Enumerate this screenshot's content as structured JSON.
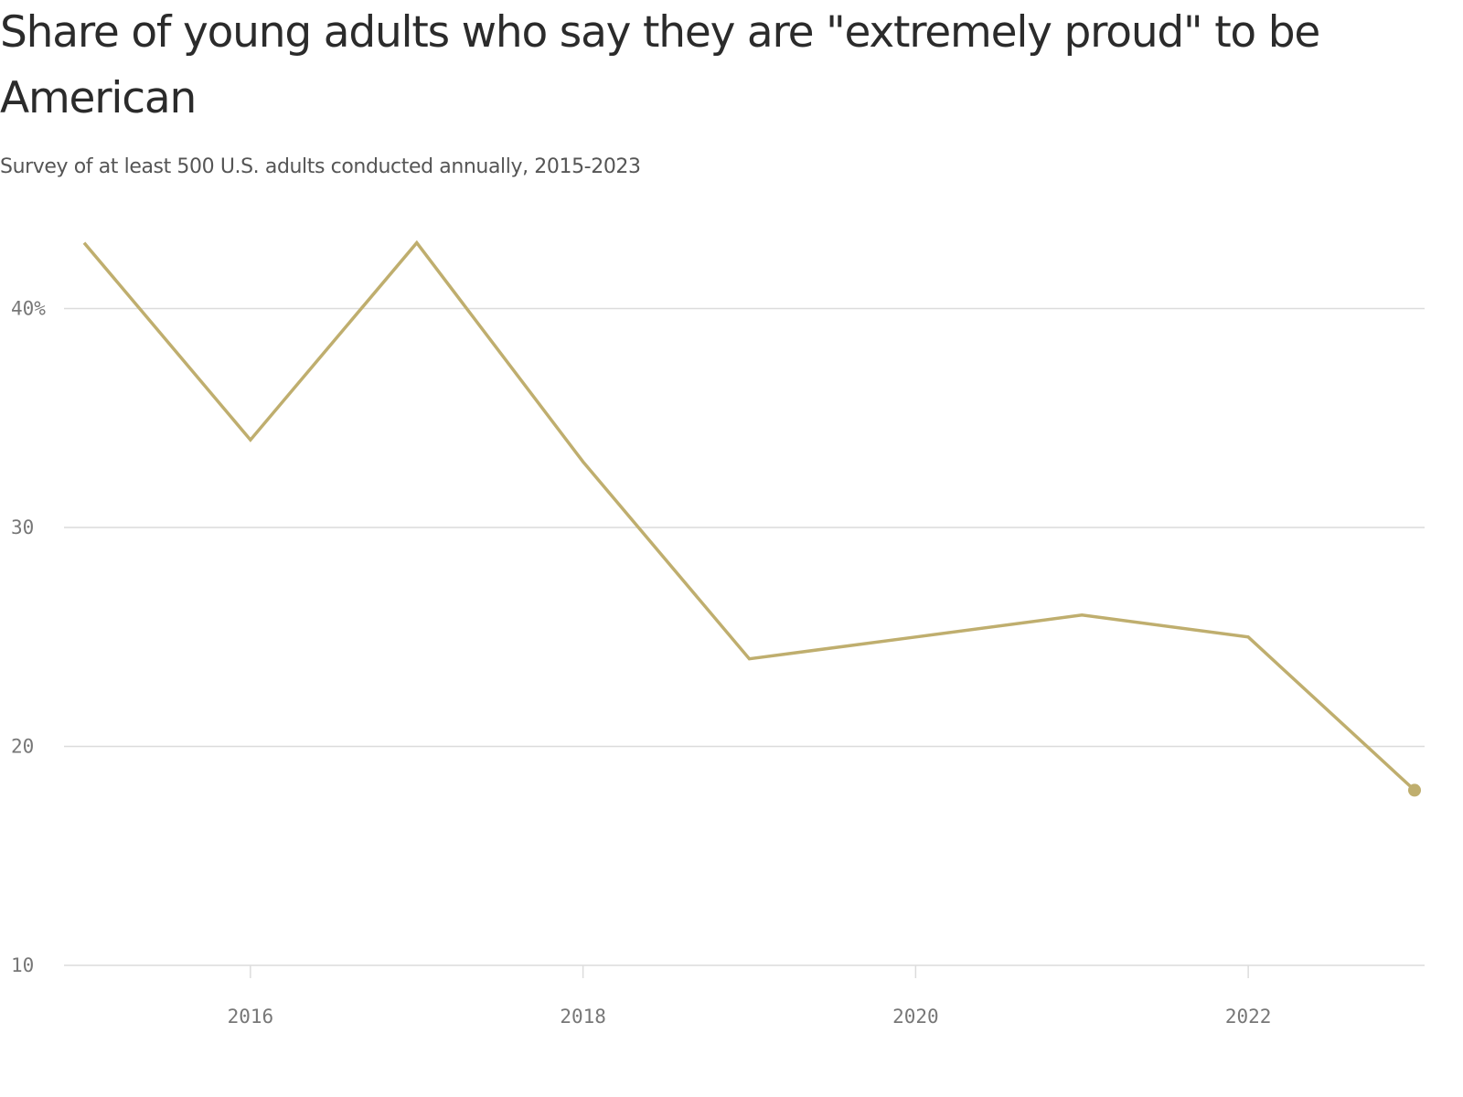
{
  "title": "Share of young adults who say they are \"extremely proud\" to be American",
  "subtitle": "Survey of at least 500 U.S. adults conducted annually, 2015-2023",
  "colors": {
    "line": "#bfae6e",
    "grid": "#dcdcdc",
    "title": "#2b2b2b",
    "subtitle": "#555555",
    "tick": "#777777"
  },
  "chart_data": {
    "type": "line",
    "title": "Share of young adults who say they are \"extremely proud\" to be American",
    "subtitle": "Survey of at least 500 U.S. adults conducted annually, 2015-2023",
    "xlabel": "",
    "ylabel": "",
    "x": [
      2015,
      2016,
      2017,
      2018,
      2019,
      2020,
      2021,
      2022,
      2023
    ],
    "series": [
      {
        "values": [
          43,
          34,
          43,
          33,
          24,
          25,
          26,
          25,
          18
        ]
      }
    ],
    "xlim": [
      2015,
      2023
    ],
    "ylim": [
      10,
      43
    ],
    "x_ticks": [
      2016,
      2018,
      2020,
      2022
    ],
    "x_tick_labels": [
      "2016",
      "2018",
      "2020",
      "2022"
    ],
    "y_ticks": [
      10,
      20,
      30,
      40
    ],
    "y_tick_labels": [
      "10",
      "20",
      "30",
      "40%"
    ],
    "grid": "horizontal",
    "legend": "none",
    "end_marker": true
  }
}
